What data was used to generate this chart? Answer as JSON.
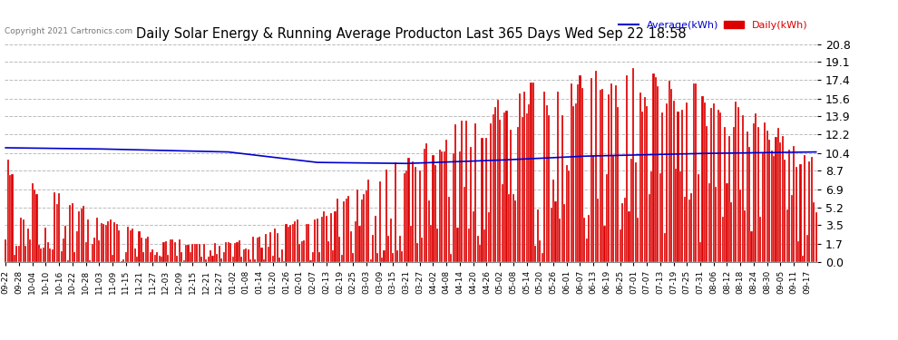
{
  "title": "Daily Solar Energy & Running Average Producton Last 365 Days Wed Sep 22 18:58",
  "copyright": "Copyright 2021 Cartronics.com",
  "legend_avg": "Average(kWh)",
  "legend_daily": "Daily(kWh)",
  "yticks": [
    0.0,
    1.7,
    3.5,
    5.2,
    6.9,
    8.7,
    10.4,
    12.2,
    13.9,
    15.6,
    17.4,
    19.1,
    20.8
  ],
  "ylim": [
    0.0,
    20.8
  ],
  "bar_color": "#dd0000",
  "bar_edge_color": "#ffffff",
  "avg_line_color": "#0000cc",
  "background_color": "#ffffff",
  "grid_color": "#aaaaaa",
  "title_color": "#000000",
  "copyright_color": "#555555",
  "bar_width": 0.85,
  "x_labels": [
    "09-22",
    "09-28",
    "10-04",
    "10-10",
    "10-16",
    "10-22",
    "10-28",
    "11-03",
    "11-09",
    "11-15",
    "11-21",
    "11-27",
    "12-03",
    "12-09",
    "12-15",
    "12-21",
    "12-27",
    "01-02",
    "01-08",
    "01-14",
    "01-20",
    "01-26",
    "02-01",
    "02-07",
    "02-13",
    "02-19",
    "02-25",
    "03-03",
    "03-09",
    "03-15",
    "03-21",
    "03-27",
    "04-02",
    "04-08",
    "04-14",
    "04-20",
    "04-26",
    "05-02",
    "05-08",
    "05-14",
    "05-20",
    "05-26",
    "06-01",
    "06-07",
    "06-13",
    "06-19",
    "06-25",
    "07-01",
    "07-07",
    "07-13",
    "07-19",
    "07-25",
    "07-31",
    "08-06",
    "08-12",
    "08-18",
    "08-24",
    "08-30",
    "09-05",
    "09-11",
    "09-17"
  ],
  "x_label_indices": [
    0,
    6,
    12,
    18,
    24,
    30,
    36,
    42,
    48,
    54,
    60,
    66,
    72,
    78,
    84,
    90,
    96,
    102,
    108,
    114,
    120,
    126,
    132,
    138,
    144,
    150,
    156,
    162,
    168,
    174,
    180,
    186,
    192,
    198,
    204,
    210,
    216,
    222,
    228,
    234,
    240,
    246,
    252,
    258,
    264,
    270,
    276,
    282,
    288,
    294,
    300,
    306,
    312,
    318,
    324,
    330,
    336,
    342,
    348,
    354,
    360
  ],
  "n_bars": 365,
  "avg_line_keyframes_x": [
    0,
    40,
    100,
    140,
    180,
    220,
    260,
    310,
    364
  ],
  "avg_line_keyframes_y": [
    10.9,
    10.8,
    10.5,
    9.5,
    9.4,
    9.7,
    10.1,
    10.35,
    10.5
  ]
}
